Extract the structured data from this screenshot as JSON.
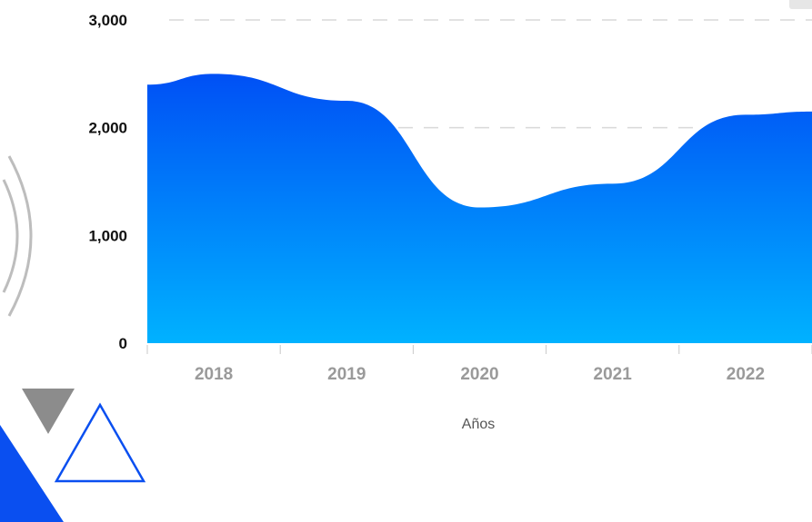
{
  "chart_data": {
    "type": "area",
    "categories": [
      "2018",
      "2019",
      "2020",
      "2021",
      "2022"
    ],
    "values": [
      2500,
      2250,
      1260,
      1480,
      2120
    ],
    "xlabel": "Años",
    "ylabel": "",
    "ylim": [
      0,
      3000
    ],
    "yticks": [
      "0",
      "1,000",
      "2,000",
      "3,000"
    ],
    "grid": true,
    "colors": {
      "fill_top": "#0050f5",
      "fill_bottom": "#00b2ff",
      "grid": "#d9d9d9",
      "decor_blue": "#0a4ff0",
      "decor_gray": "#8c8c8c"
    }
  }
}
